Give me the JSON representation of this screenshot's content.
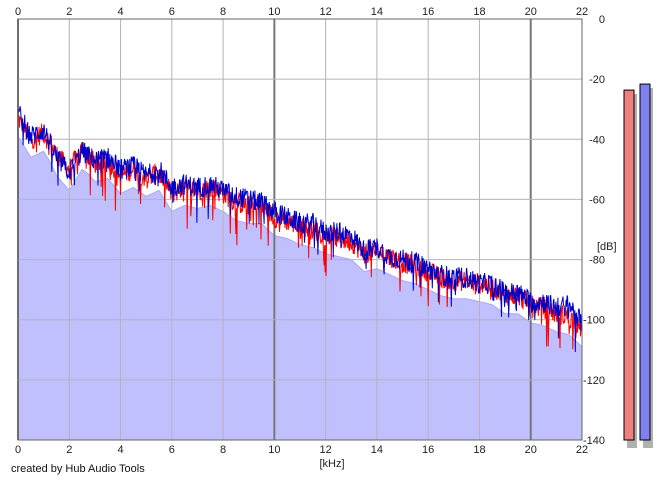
{
  "footer": {
    "credit": "created by Hub Audio Tools"
  },
  "chart_data": {
    "type": "area",
    "title": "",
    "xlabel": "[kHz]",
    "ylabel": "[dB]",
    "xlim": [
      0,
      22
    ],
    "ylim": [
      -140,
      0
    ],
    "x_ticks": [
      "0",
      "2",
      "4",
      "6",
      "8",
      "10",
      "12",
      "14",
      "16",
      "18",
      "20",
      "22"
    ],
    "y_ticks": [
      "0",
      "-20",
      "-40",
      "-60",
      "-80",
      "-100",
      "-120",
      "-140"
    ],
    "grid": true,
    "x_axis_labels": "top-and-bottom",
    "y_axis_labels": "right",
    "colors": {
      "left": "#ff0000",
      "right": "#0000cc",
      "fill": "#c0c0ff",
      "fill_edge": "#a8a8ff"
    },
    "series": [
      {
        "channel": "left",
        "x": [
          0,
          0.5,
          1,
          1.5,
          2,
          2.5,
          3,
          3.5,
          4,
          4.5,
          5,
          5.5,
          6,
          6.5,
          7,
          7.5,
          8,
          8.5,
          9,
          9.5,
          10,
          10.5,
          11,
          11.5,
          12,
          12.5,
          13,
          13.5,
          14,
          14.5,
          15,
          15.5,
          16,
          16.5,
          17,
          17.5,
          18,
          18.5,
          19,
          19.5,
          20,
          20.5,
          21,
          21.5,
          22
        ],
        "values": [
          -33,
          -40,
          -38,
          -45,
          -50,
          -43,
          -48,
          -47,
          -52,
          -50,
          -53,
          -51,
          -58,
          -56,
          -57,
          -56,
          -58,
          -61,
          -62,
          -62,
          -66,
          -67,
          -69,
          -70,
          -72,
          -73,
          -74,
          -78,
          -77,
          -79,
          -81,
          -82,
          -84,
          -86,
          -87,
          -87,
          -88,
          -89,
          -92,
          -92,
          -95,
          -96,
          -98,
          -99,
          -103
        ]
      },
      {
        "channel": "right",
        "x": [
          0,
          0.5,
          1,
          1.5,
          2,
          2.5,
          3,
          3.5,
          4,
          4.5,
          5,
          5.5,
          6,
          6.5,
          7,
          7.5,
          8,
          8.5,
          9,
          9.5,
          10,
          10.5,
          11,
          11.5,
          12,
          12.5,
          13,
          13.5,
          14,
          14.5,
          15,
          15.5,
          16,
          16.5,
          17,
          17.5,
          18,
          18.5,
          19,
          19.5,
          20,
          20.5,
          21,
          21.5,
          22
        ],
        "values": [
          -31,
          -39,
          -37,
          -46,
          -51,
          -44,
          -47,
          -46,
          -50,
          -49,
          -52,
          -50,
          -56,
          -55,
          -56,
          -55,
          -57,
          -59,
          -60,
          -61,
          -64,
          -66,
          -68,
          -68,
          -71,
          -71,
          -72,
          -77,
          -76,
          -79,
          -80,
          -81,
          -83,
          -85,
          -86,
          -86,
          -88,
          -88,
          -91,
          -91,
          -94,
          -94,
          -96,
          -95,
          -101
        ]
      }
    ],
    "level_meters": [
      {
        "channel": "left",
        "color": "#f08080",
        "level_db": -12
      },
      {
        "channel": "right",
        "color": "#8080f0",
        "level_db": -10
      }
    ]
  }
}
